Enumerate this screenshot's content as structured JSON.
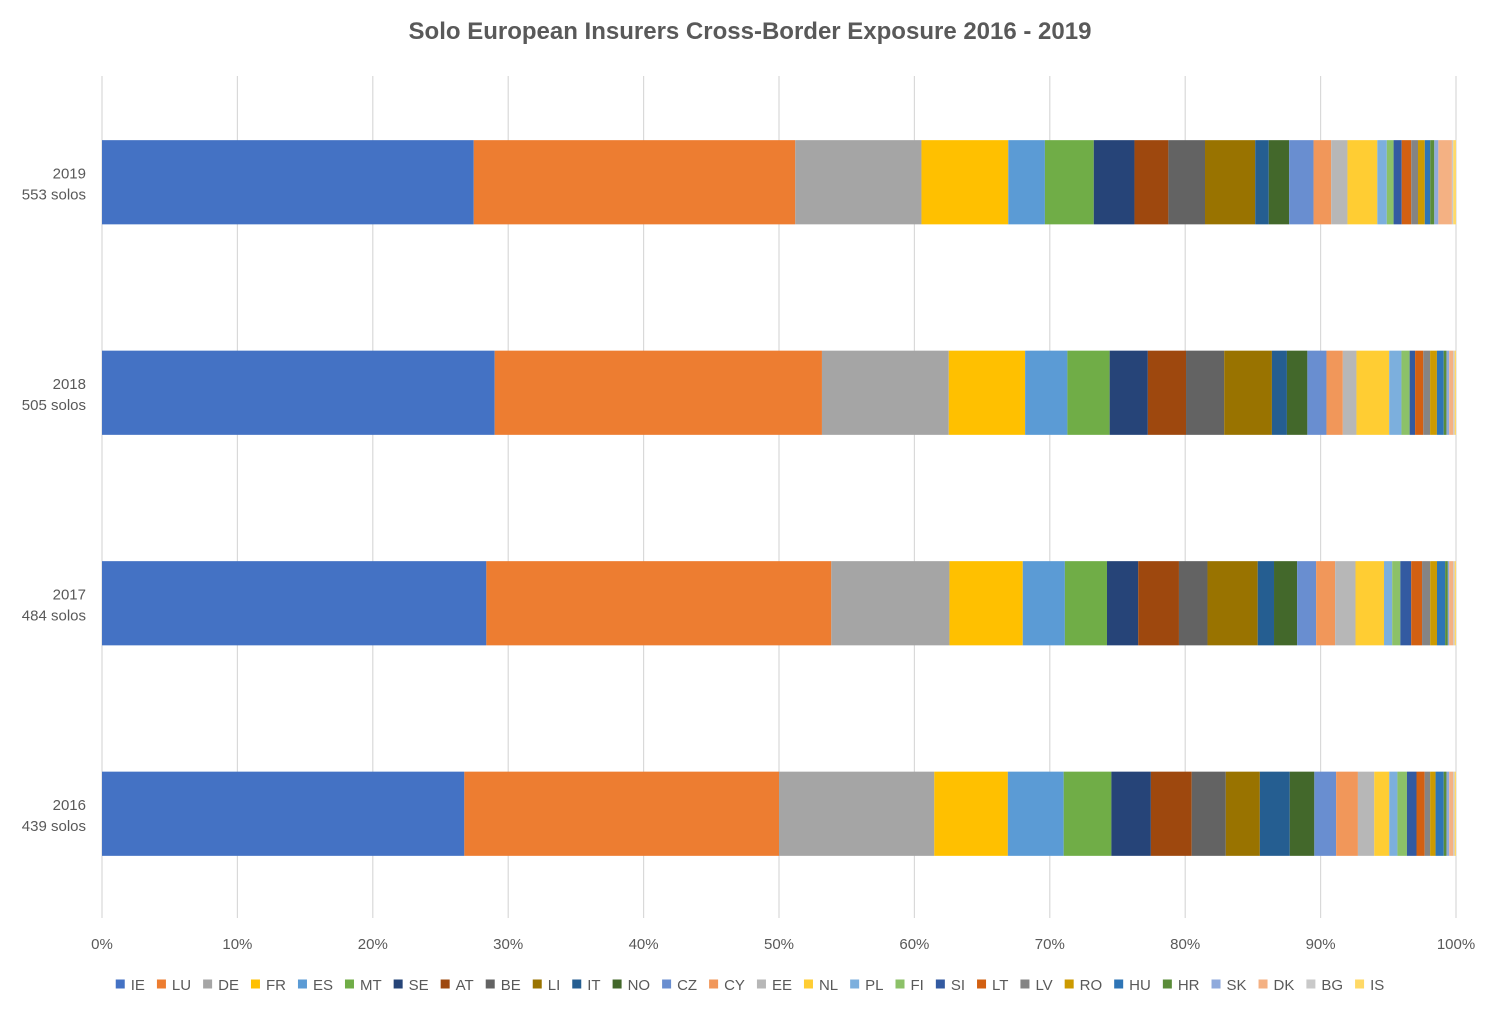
{
  "chart_data": {
    "type": "bar",
    "orientation": "horizontal",
    "stacked": "percent",
    "title": "Solo European Insurers Cross-Border Exposure 2016 - 2019",
    "xlabel": "",
    "ylabel": "",
    "xlim": [
      0,
      100
    ],
    "x_ticks": [
      "0%",
      "10%",
      "20%",
      "30%",
      "40%",
      "50%",
      "60%",
      "70%",
      "80%",
      "90%",
      "100%"
    ],
    "grid": true,
    "legend_position": "bottom",
    "categories": [
      {
        "year": "2019",
        "solos": "553 solos"
      },
      {
        "year": "2018",
        "solos": "505 solos"
      },
      {
        "year": "2017",
        "solos": "484 solos"
      },
      {
        "year": "2016",
        "solos": "439 solos"
      }
    ],
    "series": [
      {
        "name": "IE",
        "color": "#4472C4",
        "values": [
          27.4,
          28.8,
          28.3,
          26.6
        ]
      },
      {
        "name": "LU",
        "color": "#ED7D31",
        "values": [
          23.7,
          24.0,
          25.4,
          23.1
        ]
      },
      {
        "name": "DE",
        "color": "#A5A5A5",
        "values": [
          9.3,
          9.3,
          8.7,
          11.4
        ]
      },
      {
        "name": "FR",
        "color": "#FFC000",
        "values": [
          6.4,
          5.6,
          5.4,
          5.4
        ]
      },
      {
        "name": "ES",
        "color": "#5B9BD5",
        "values": [
          2.7,
          3.1,
          3.1,
          4.1
        ]
      },
      {
        "name": "MT",
        "color": "#70AD47",
        "values": [
          3.6,
          3.1,
          3.1,
          3.5
        ]
      },
      {
        "name": "SE",
        "color": "#264478",
        "values": [
          3.0,
          2.8,
          2.3,
          2.9
        ]
      },
      {
        "name": "AT",
        "color": "#9E480E",
        "values": [
          2.5,
          2.8,
          3.0,
          3.0
        ]
      },
      {
        "name": "BE",
        "color": "#636363",
        "values": [
          2.7,
          2.8,
          2.1,
          2.5
        ]
      },
      {
        "name": "LI",
        "color": "#997300",
        "values": [
          3.7,
          3.5,
          3.7,
          2.5
        ]
      },
      {
        "name": "IT",
        "color": "#255E91",
        "values": [
          1.0,
          1.1,
          1.2,
          2.2
        ]
      },
      {
        "name": "NO",
        "color": "#43682B",
        "values": [
          1.5,
          1.5,
          1.7,
          1.8
        ]
      },
      {
        "name": "CZ",
        "color": "#698ED0",
        "values": [
          1.8,
          1.4,
          1.4,
          1.6
        ]
      },
      {
        "name": "CY",
        "color": "#F1975A",
        "values": [
          1.3,
          1.2,
          1.4,
          1.6
        ]
      },
      {
        "name": "EE",
        "color": "#B7B7B7",
        "values": [
          1.2,
          1.0,
          1.5,
          1.2
        ]
      },
      {
        "name": "NL",
        "color": "#FFCD33",
        "values": [
          2.2,
          2.4,
          2.1,
          1.1
        ]
      },
      {
        "name": "PL",
        "color": "#7CAFDD",
        "values": [
          0.7,
          0.9,
          0.6,
          0.6
        ]
      },
      {
        "name": "FI",
        "color": "#8CC168",
        "values": [
          0.5,
          0.6,
          0.6,
          0.7
        ]
      },
      {
        "name": "SI",
        "color": "#335AA1",
        "values": [
          0.6,
          0.4,
          0.8,
          0.7
        ]
      },
      {
        "name": "LT",
        "color": "#D26012",
        "values": [
          0.7,
          0.6,
          0.8,
          0.6
        ]
      },
      {
        "name": "LV",
        "color": "#848484",
        "values": [
          0.5,
          0.5,
          0.6,
          0.4
        ]
      },
      {
        "name": "RO",
        "color": "#CC9A00",
        "values": [
          0.5,
          0.5,
          0.5,
          0.4
        ]
      },
      {
        "name": "HU",
        "color": "#2E75B6",
        "values": [
          0.4,
          0.5,
          0.6,
          0.6
        ]
      },
      {
        "name": "HR",
        "color": "#5A8C39",
        "values": [
          0.3,
          0.2,
          0.2,
          0.2
        ]
      },
      {
        "name": "SK",
        "color": "#8FAADC",
        "values": [
          0.3,
          0.2,
          0.1,
          0.2
        ]
      },
      {
        "name": "DK",
        "color": "#F4B183",
        "values": [
          1.0,
          0.3,
          0.3,
          0.3
        ]
      },
      {
        "name": "BG",
        "color": "#C9C9C9",
        "values": [
          0.1,
          0.1,
          0.1,
          0.1
        ]
      },
      {
        "name": "IS",
        "color": "#FFD966",
        "values": [
          0.2,
          0.1,
          0.1,
          0.1
        ]
      }
    ]
  }
}
